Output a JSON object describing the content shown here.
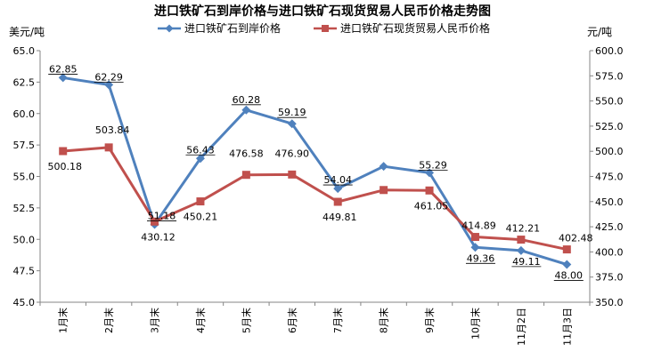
{
  "chart_data": {
    "type": "line",
    "title": "进口铁矿石到岸价格与进口铁矿石现货贸易人民币价格走势图",
    "ylabel_left": "美元/吨",
    "ylabel_right": "元/吨",
    "categories": [
      "1月末",
      "2月末",
      "3月末",
      "4月末",
      "5月末",
      "6月末",
      "7月末",
      "8月末",
      "9月末",
      "10月末",
      "11月2日",
      "11月3日"
    ],
    "ylim_left": [
      45.0,
      65.0
    ],
    "ylim_right": [
      350.0,
      600.0
    ],
    "yticks_left": [
      "45.0",
      "47.5",
      "50.0",
      "52.5",
      "55.0",
      "57.5",
      "60.0",
      "62.5",
      "65.0"
    ],
    "yticks_right": [
      "350.0",
      "375.0",
      "400.0",
      "425.0",
      "450.0",
      "475.0",
      "500.0",
      "525.0",
      "550.0",
      "575.0",
      "600.0"
    ],
    "legend_position": "top",
    "grid": false,
    "series": [
      {
        "name": "进口铁矿石到岸价格",
        "axis": "left",
        "color": "#4F81BD",
        "marker": "diamond",
        "values": [
          62.85,
          62.29,
          51.18,
          56.43,
          60.28,
          59.19,
          54.04,
          55.8,
          55.29,
          49.36,
          49.11,
          48.0
        ],
        "labels": [
          "62.85",
          "62.29",
          "51.18",
          "56.43",
          "60.28",
          "59.19",
          "54.04",
          "",
          "55.29",
          "49.36",
          "49.11",
          "48.00"
        ]
      },
      {
        "name": "进口铁矿石现货贸易人民币价格",
        "axis": "right",
        "color": "#C0504D",
        "marker": "square",
        "values": [
          500.18,
          503.84,
          430.12,
          450.21,
          476.58,
          476.9,
          449.81,
          461.5,
          461.05,
          414.89,
          412.21,
          402.48
        ],
        "labels": [
          "500.18",
          "503.84",
          "430.12",
          "450.21",
          "476.58",
          "476.90",
          "449.81",
          "",
          "461.05",
          "414.89",
          "412.21",
          "402.48"
        ]
      }
    ]
  }
}
